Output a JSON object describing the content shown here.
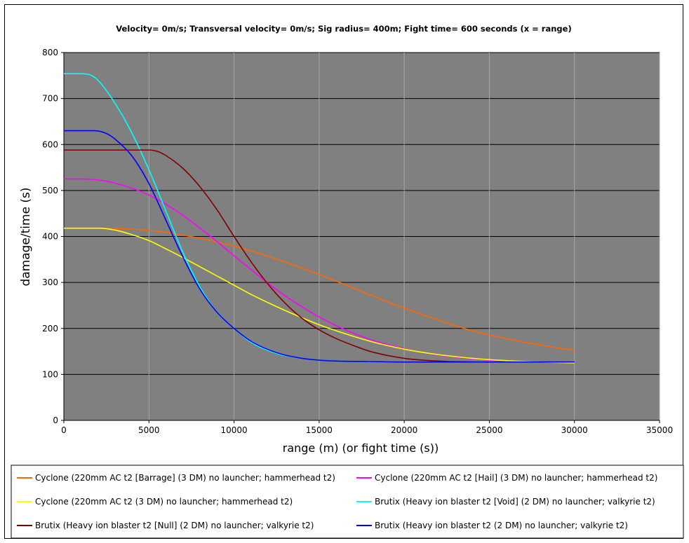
{
  "chart_data": {
    "type": "line",
    "title": "Velocity= 0m/s; Transversal velocity= 0m/s; Sig radius= 400m; Fight time= 600 seconds (x = range)",
    "xlabel": "range (m) (or fight time (s))",
    "ylabel": "damage/time (s)",
    "xlim": [
      0,
      35000
    ],
    "ylim": [
      0,
      800
    ],
    "x_ticks": [
      "0",
      "5000",
      "10000",
      "15000",
      "20000",
      "25000",
      "30000",
      "35000"
    ],
    "y_ticks": [
      "0",
      "100",
      "200",
      "300",
      "400",
      "500",
      "600",
      "700",
      "800"
    ],
    "grid": true,
    "plot_background": "#808080",
    "legend_position": "bottom",
    "series": [
      {
        "name": "Cyclone (220mm AC t2 [Barrage] (3 DM) no launcher; hammerhead t2)",
        "color": "#ff6600",
        "x": [
          0,
          2000,
          4000,
          6000,
          8000,
          10000,
          12000,
          14000,
          16000,
          18000,
          20000,
          22000,
          24000,
          26000,
          28000,
          30000
        ],
        "y": [
          418,
          418,
          416,
          409,
          396,
          379,
          357,
          331,
          303,
          273,
          244,
          218,
          195,
          178,
          164,
          152
        ]
      },
      {
        "name": "Cyclone (220mm AC t2 [Hail] (3 DM) no launcher; hammerhead t2)",
        "color": "#ff00ff",
        "x": [
          0,
          1000,
          2000,
          3000,
          4000,
          5000,
          6000,
          7000,
          8000,
          9000,
          10000,
          11000,
          12000,
          13000,
          14000,
          15000,
          16000,
          18000,
          20000,
          22000,
          24000,
          26000,
          28000,
          30000
        ],
        "y": [
          525,
          525,
          523,
          516,
          505,
          490,
          470,
          446,
          418,
          389,
          358,
          328,
          298,
          271,
          247,
          225,
          206,
          176,
          156,
          142,
          134,
          129,
          127,
          126
        ]
      },
      {
        "name": "Cyclone (220mm AC t2 (3 DM) no launcher; hammerhead t2)",
        "color": "#ffff00",
        "x": [
          0,
          1000,
          2000,
          3000,
          4000,
          5000,
          6000,
          7000,
          8000,
          9000,
          10000,
          11000,
          12000,
          13000,
          14000,
          15000,
          16000,
          18000,
          20000,
          22000,
          24000,
          26000,
          28000,
          30000
        ],
        "y": [
          418,
          418,
          418,
          414,
          404,
          391,
          373,
          354,
          334,
          314,
          294,
          274,
          256,
          239,
          223,
          208,
          195,
          172,
          155,
          143,
          135,
          130,
          127,
          125
        ]
      },
      {
        "name": "Brutix (Heavy ion blaster t2 [Void] (2 DM) no launcher; valkyrie t2)",
        "color": "#00ffff",
        "x": [
          0,
          1000,
          1500,
          2000,
          3000,
          4000,
          5000,
          6000,
          7000,
          8000,
          9000,
          10000,
          11000,
          12000,
          13000,
          14000,
          15000,
          16000,
          18000,
          20000,
          25000,
          30000
        ],
        "y": [
          754,
          754,
          752,
          740,
          690,
          625,
          545,
          455,
          365,
          290,
          235,
          200,
          170,
          152,
          141,
          135,
          131,
          129,
          128,
          127,
          127,
          127
        ]
      },
      {
        "name": "Brutix (Heavy ion blaster t2 [Null] (2 DM) no launcher; valkyrie t2)",
        "color": "#800000",
        "x": [
          0,
          1000,
          2000,
          3000,
          4000,
          5000,
          5500,
          6000,
          7000,
          8000,
          9000,
          10000,
          11000,
          12000,
          13000,
          14000,
          15000,
          16000,
          17000,
          18000,
          20000,
          22000,
          25000,
          30000
        ],
        "y": [
          588,
          588,
          588,
          588,
          588,
          588,
          585,
          576,
          548,
          508,
          458,
          400,
          345,
          296,
          255,
          222,
          197,
          178,
          163,
          150,
          135,
          129,
          127,
          127
        ]
      },
      {
        "name": "Brutix (Heavy ion blaster t2 (2 DM) no launcher; valkyrie t2)",
        "color": "#0000ff",
        "x": [
          0,
          1000,
          1800,
          2500,
          3000,
          4000,
          5000,
          6000,
          7000,
          8000,
          9000,
          10000,
          11000,
          12000,
          13000,
          14000,
          15000,
          16000,
          18000,
          20000,
          25000,
          30000
        ],
        "y": [
          630,
          630,
          630,
          624,
          612,
          575,
          515,
          435,
          355,
          285,
          235,
          200,
          172,
          154,
          142,
          135,
          131,
          129,
          128,
          127,
          127,
          127
        ]
      }
    ]
  }
}
